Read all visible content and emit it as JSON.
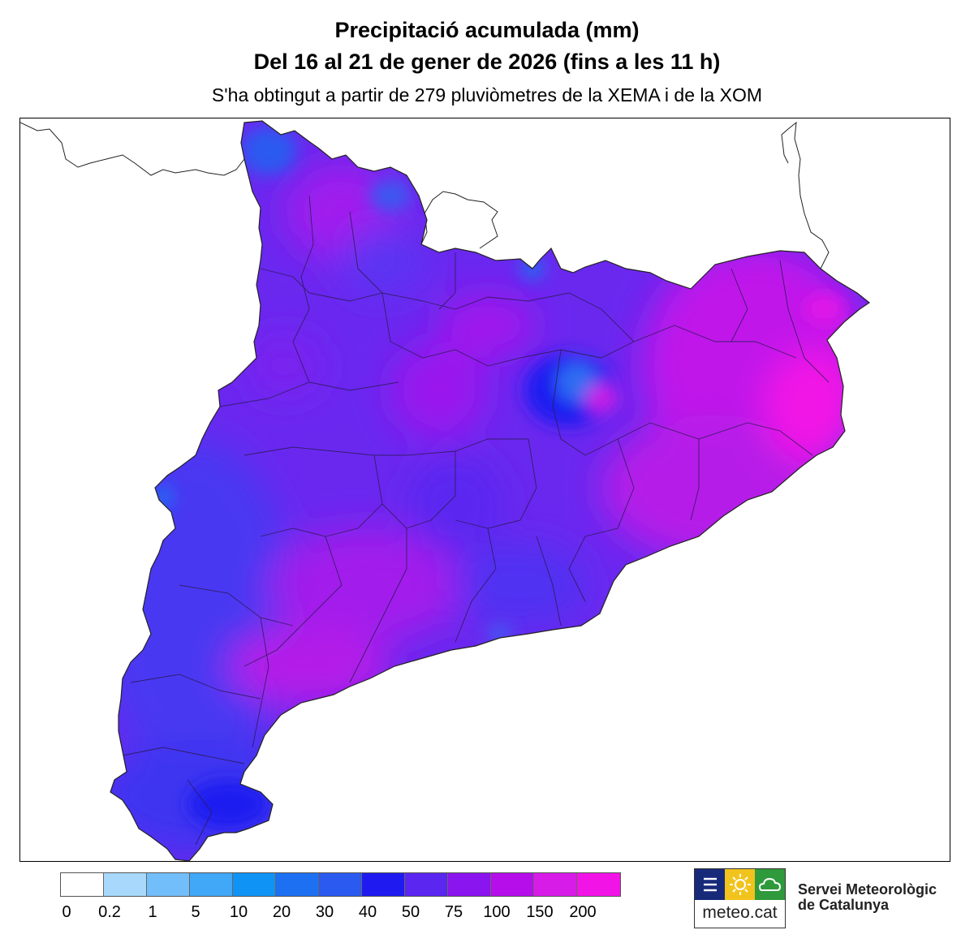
{
  "title": {
    "line1": "Precipitació acumulada (mm)",
    "line2": "Del 16 al 21 de gener de 2026 (fins a les 11 h)",
    "subtitle": "S'ha obtingut a partir de 279 pluviòmetres de la XEMA i de la XOM"
  },
  "legend": {
    "colors": [
      "#ffffff",
      "#a8d8fb",
      "#72befa",
      "#41a7f7",
      "#0f94f5",
      "#1d70f2",
      "#2a5af0",
      "#1f1bf0",
      "#5a26f0",
      "#8a15ee",
      "#b60eeb",
      "#d81ce7",
      "#f214e6"
    ],
    "ticks": [
      "0",
      "0.2",
      "1",
      "5",
      "10",
      "20",
      "30",
      "40",
      "50",
      "75",
      "100",
      "150",
      "200"
    ]
  },
  "logo": {
    "text": "meteo.cat",
    "icons": [
      "bars-icon",
      "sun-icon",
      "cloud-icon"
    ],
    "tile_colors": [
      "#172a7a",
      "#f2c31c",
      "#2f9a3c"
    ]
  },
  "organization": {
    "line1": "Servei Meteorològic",
    "line2": "de Catalunya"
  }
}
